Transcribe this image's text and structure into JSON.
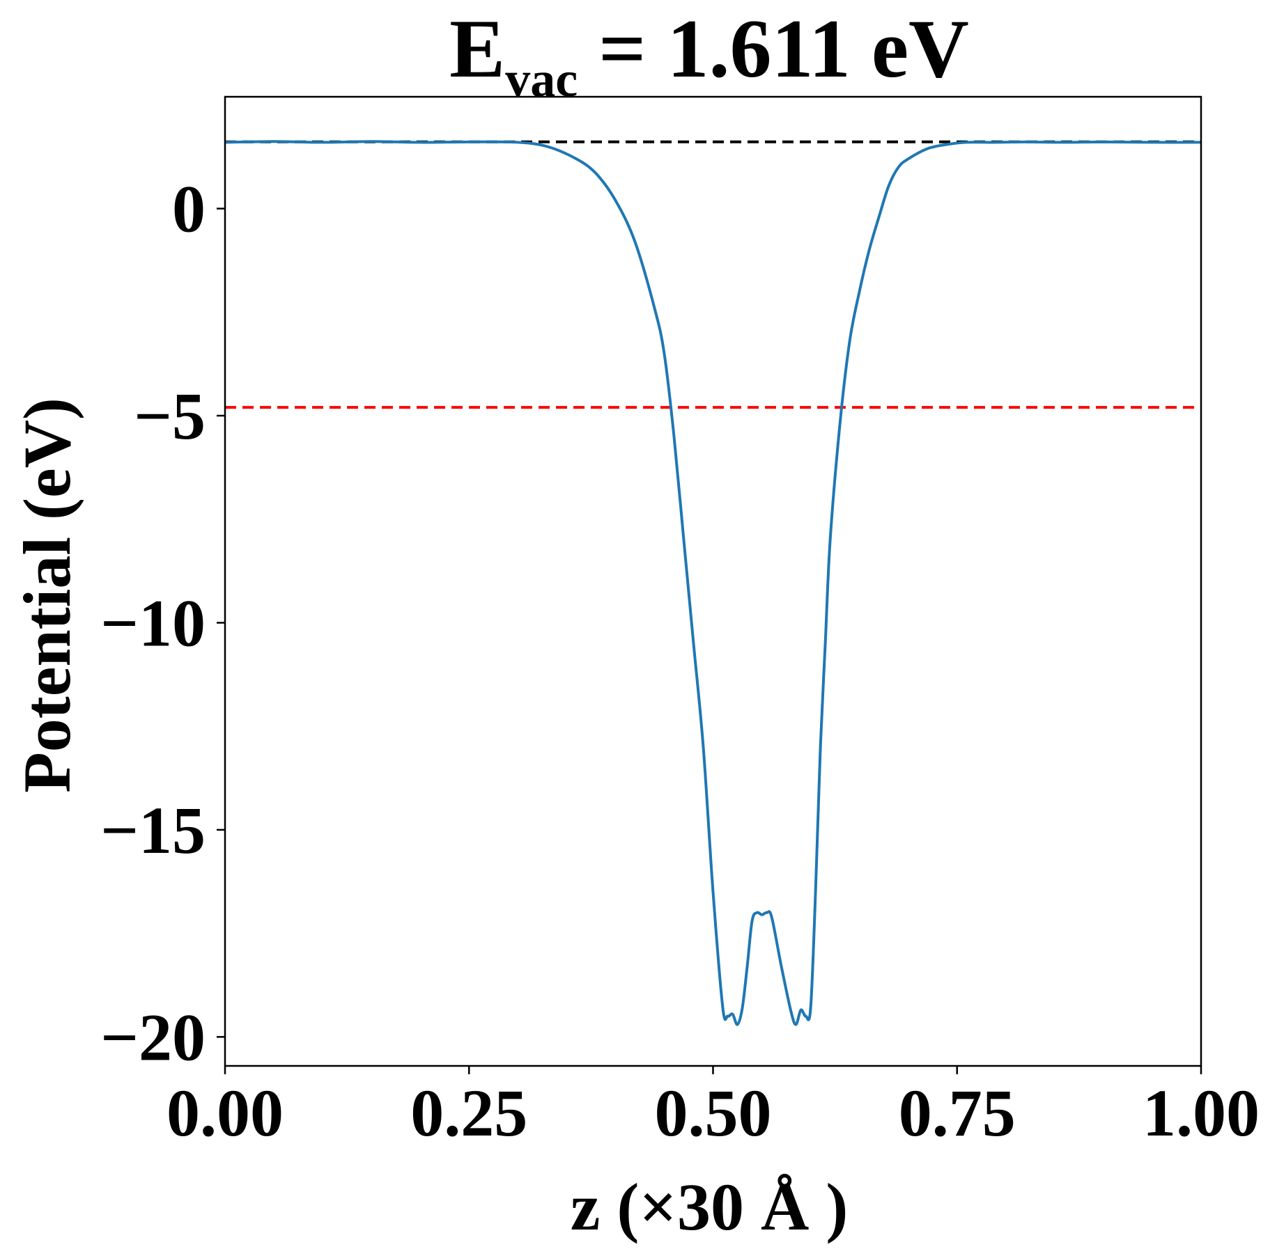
{
  "chart_data": {
    "type": "line",
    "title": {
      "main": "E",
      "subscript": "vac",
      "rest": " = 1.611 eV"
    },
    "xlabel": "z (×30 Å )",
    "ylabel": "Potential (eV)",
    "xlim": [
      0.0,
      1.0
    ],
    "ylim": [
      -20.7,
      2.7
    ],
    "x_ticks": [
      0.0,
      0.25,
      0.5,
      0.75,
      1.0
    ],
    "x_tick_labels": [
      "0.00",
      "0.25",
      "0.50",
      "0.75",
      "1.00"
    ],
    "y_ticks": [
      0,
      -5,
      -10,
      -15,
      -20
    ],
    "y_tick_labels": [
      "0",
      "−5",
      "−10",
      "−15",
      "−20"
    ],
    "grid": false,
    "legend": "none",
    "series": [
      {
        "color": "#1f77b4",
        "x": [
          0.0,
          0.05,
          0.1,
          0.15,
          0.2,
          0.25,
          0.3,
          0.33,
          0.36,
          0.38,
          0.4,
          0.42,
          0.44,
          0.45,
          0.46,
          0.47,
          0.48,
          0.49,
          0.5,
          0.51,
          0.515,
          0.52,
          0.525,
          0.53,
          0.535,
          0.54,
          0.545,
          0.55,
          0.555,
          0.56,
          0.57,
          0.58,
          0.585,
          0.59,
          0.595,
          0.6,
          0.605,
          0.61,
          0.615,
          0.62,
          0.63,
          0.64,
          0.65,
          0.66,
          0.67,
          0.68,
          0.69,
          0.7,
          0.72,
          0.74,
          0.76,
          0.79,
          0.82,
          0.86,
          0.9,
          0.95,
          1.0
        ],
        "y": [
          1.6,
          1.62,
          1.6,
          1.62,
          1.6,
          1.61,
          1.6,
          1.5,
          1.2,
          0.85,
          0.2,
          -0.8,
          -2.4,
          -3.5,
          -5.5,
          -8.0,
          -10.5,
          -13.0,
          -16.5,
          -19.3,
          -19.5,
          -19.45,
          -19.7,
          -19.3,
          -18.3,
          -17.2,
          -17.0,
          -17.05,
          -17.0,
          -17.1,
          -18.3,
          -19.4,
          -19.7,
          -19.35,
          -19.5,
          -19.3,
          -16.5,
          -13.0,
          -10.5,
          -8.0,
          -5.2,
          -3.2,
          -2.0,
          -1.0,
          -0.2,
          0.55,
          1.0,
          1.2,
          1.45,
          1.55,
          1.6,
          1.6,
          1.61,
          1.6,
          1.61,
          1.6,
          1.6
        ]
      }
    ],
    "reference_lines": [
      {
        "y": 1.611,
        "color": "#000000",
        "style": "dashed"
      },
      {
        "y": -4.8,
        "color": "#ff0000",
        "style": "dashed"
      }
    ]
  }
}
